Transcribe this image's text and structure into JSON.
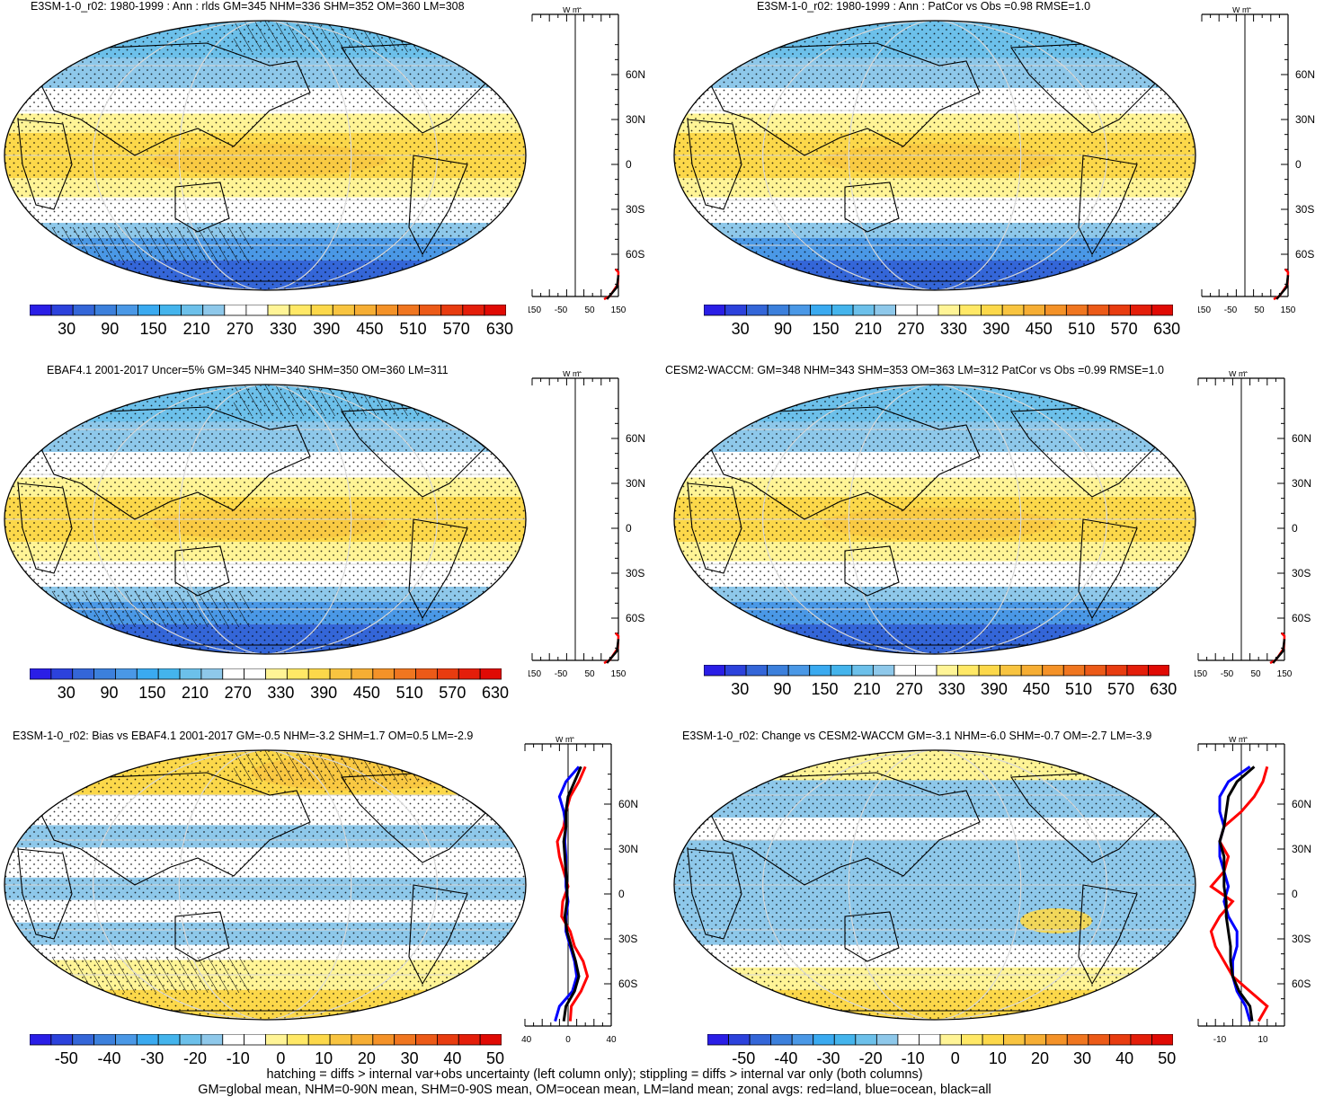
{
  "panels": [
    {
      "id": "p1",
      "title": "E3SM-1-0_r02: 1980-1999 : Ann : rlds GM=345 NHM=336 SHM=352 OM=360 LM=308",
      "kind": "abs",
      "hatch": true
    },
    {
      "id": "p2",
      "title": "E3SM-1-0_r02: 1980-1999 : Ann : PatCor vs Obs =0.98 RMSE=1.0",
      "kind": "abs",
      "hatch": false
    },
    {
      "id": "p3",
      "title": "EBAF4.1 2001-2017 Uncer=5% GM=345 NHM=340 SHM=350 OM=360 LM=311",
      "kind": "abs",
      "hatch": true
    },
    {
      "id": "p4",
      "title": "CESM2-WACCM: GM=348 NHM=343 SHM=353 OM=363 LM=312 PatCor vs Obs =0.99 RMSE=1.0",
      "kind": "abs",
      "hatch": false
    },
    {
      "id": "p5",
      "title": "E3SM-1-0_r02: Bias vs EBAF4.1 2001-2017 GM=-0.5 NHM=-3.2 SHM=1.7 OM=0.5 LM=-2.9",
      "kind": "diff",
      "hatch": true
    },
    {
      "id": "p6",
      "title": "E3SM-1-0_r02: Change vs CESM2-WACCM GM=-3.1 NHM=-6.0 SHM=-0.7 OM=-2.7 LM=-3.9",
      "kind": "diff",
      "hatch": false
    }
  ],
  "zonal_unit": "W m",
  "zonal_unit_sup": "-2",
  "lat_labels": [
    "60N",
    "30N",
    "0",
    "30S",
    "60S"
  ],
  "abs_zonal_ticks": [
    "-150",
    "-50",
    "50",
    "150"
  ],
  "diff_zonal_ticks_left": [
    "-40",
    "0",
    "40"
  ],
  "diff_zonal_ticks_right": [
    "-10",
    "10"
  ],
  "abs_colorbar_labels": [
    "30",
    "90",
    "150",
    "210",
    "270",
    "330",
    "390",
    "450",
    "510",
    "570",
    "630"
  ],
  "diff_colorbar_labels": [
    "-50",
    "-40",
    "-30",
    "-20",
    "-10",
    "0",
    "10",
    "20",
    "30",
    "40",
    "50"
  ],
  "abs_colors": [
    "#2a1ee6",
    "#2c42dc",
    "#3466d8",
    "#3c80dc",
    "#4a98e6",
    "#3aaaf0",
    "#44b4ec",
    "#6cc0ea",
    "#8ec8ea",
    "#ffffff",
    "#ffffff",
    "#fff496",
    "#ffe866",
    "#fcd84a",
    "#f8c440",
    "#f6ae34",
    "#f49228",
    "#f07620",
    "#ec5a18",
    "#e83c10",
    "#e41e0a",
    "#e00a04"
  ],
  "diff_colors": [
    "#2a1ee6",
    "#2c42dc",
    "#3466d8",
    "#3c80dc",
    "#4a98e6",
    "#3aaaf0",
    "#44b4ec",
    "#6cc0ea",
    "#8ec8ea",
    "#ffffff",
    "#ffffff",
    "#fff496",
    "#ffe866",
    "#fcd84a",
    "#f8c440",
    "#f6ae34",
    "#f49228",
    "#f07620",
    "#ec5a18",
    "#e83c10",
    "#e41e0a",
    "#e00a04"
  ],
  "chart_data": [
    {
      "type": "heatmap",
      "title": "E3SM-1-0_r02: 1980-1999 : Ann : rlds GM=345 NHM=336 SHM=352 OM=360 LM=308",
      "zonal": {
        "series": [
          {
            "name": "land",
            "color": "red"
          },
          {
            "name": "ocean",
            "color": "blue"
          },
          {
            "name": "all",
            "color": "black"
          }
        ],
        "xlim": [
          -150,
          150
        ],
        "ylim": [
          -90,
          90
        ]
      },
      "colorbar_range": [
        30,
        630
      ]
    },
    {
      "type": "heatmap",
      "title": "E3SM-1-0_r02: 1980-1999 : Ann : PatCor vs Obs =0.98 RMSE=1.0",
      "zonal": {
        "xlim": [
          -150,
          150
        ],
        "ylim": [
          -90,
          90
        ]
      },
      "colorbar_range": [
        30,
        630
      ]
    },
    {
      "type": "heatmap",
      "title": "EBAF4.1 2001-2017 Uncer=5% GM=345 NHM=340 SHM=350 OM=360 LM=311",
      "zonal": {
        "xlim": [
          -150,
          150
        ],
        "ylim": [
          -90,
          90
        ]
      },
      "colorbar_range": [
        30,
        630
      ]
    },
    {
      "type": "heatmap",
      "title": "CESM2-WACCM: GM=348 NHM=343 SHM=353 OM=363 LM=312 PatCor vs Obs =0.99 RMSE=1.0",
      "zonal": {
        "xlim": [
          -150,
          150
        ],
        "ylim": [
          -90,
          90
        ]
      },
      "colorbar_range": [
        30,
        630
      ]
    },
    {
      "type": "heatmap",
      "title": "E3SM-1-0_r02: Bias vs EBAF4.1 2001-2017 GM=-0.5 NHM=-3.2 SHM=1.7 OM=0.5 LM=-2.9",
      "zonal": {
        "xlim": [
          -40,
          40
        ],
        "ylim": [
          -90,
          90
        ],
        "lat": [
          -85,
          -75,
          -65,
          -55,
          -45,
          -35,
          -25,
          -15,
          -5,
          5,
          15,
          25,
          35,
          45,
          55,
          65,
          75,
          85
        ],
        "series": [
          {
            "name": "land",
            "color": "red",
            "values": [
              2,
              3,
              12,
              18,
              14,
              6,
              2,
              -6,
              -5,
              0,
              -4,
              -8,
              -10,
              -4,
              -2,
              2,
              10,
              16
            ]
          },
          {
            "name": "ocean",
            "color": "blue",
            "values": [
              -12,
              -8,
              4,
              8,
              6,
              2,
              -2,
              -2,
              0,
              -2,
              -2,
              -2,
              -3,
              -2,
              -4,
              -8,
              -2,
              10
            ]
          },
          {
            "name": "all",
            "color": "black",
            "values": [
              -4,
              -2,
              6,
              10,
              7,
              3,
              -1,
              -3,
              -1,
              -1,
              -2,
              -3,
              -4,
              -2,
              -2,
              0,
              6,
              12
            ]
          }
        ]
      },
      "colorbar_range": [
        -50,
        50
      ]
    },
    {
      "type": "heatmap",
      "title": "E3SM-1-0_r02: Change vs CESM2-WACCM GM=-3.1 NHM=-6.0 SHM=-0.7 OM=-2.7 LM=-3.9",
      "zonal": {
        "xlim": [
          -20,
          20
        ],
        "ylim": [
          -90,
          90
        ],
        "lat": [
          -85,
          -75,
          -65,
          -55,
          -45,
          -35,
          -25,
          -15,
          -5,
          5,
          15,
          25,
          35,
          45,
          55,
          65,
          75,
          85
        ],
        "series": [
          {
            "name": "land",
            "color": "red",
            "values": [
              8,
              12,
              4,
              -4,
              -8,
              -12,
              -14,
              -10,
              -4,
              -14,
              -8,
              -6,
              -10,
              -8,
              0,
              6,
              10,
              12
            ]
          },
          {
            "name": "ocean",
            "color": "blue",
            "values": [
              4,
              2,
              -2,
              -4,
              -4,
              -2,
              -2,
              -6,
              -8,
              -6,
              -8,
              -10,
              -10,
              -8,
              -10,
              -10,
              -6,
              4
            ]
          },
          {
            "name": "all",
            "color": "black",
            "values": [
              5,
              4,
              -1,
              -4,
              -5,
              -5,
              -6,
              -7,
              -7,
              -8,
              -8,
              -8,
              -10,
              -8,
              -7,
              -6,
              -2,
              6
            ]
          }
        ]
      },
      "colorbar_range": [
        -50,
        50
      ]
    }
  ],
  "footer": {
    "line1": "hatching = diffs > internal var+obs uncertainty (left column only); stippling = diffs > internal var only (both columns)",
    "line2": "GM=global mean, NHM=0-90N mean, SHM=0-90S mean, OM=ocean mean, LM=land mean; zonal avgs: red=land, blue=ocean, black=all"
  }
}
